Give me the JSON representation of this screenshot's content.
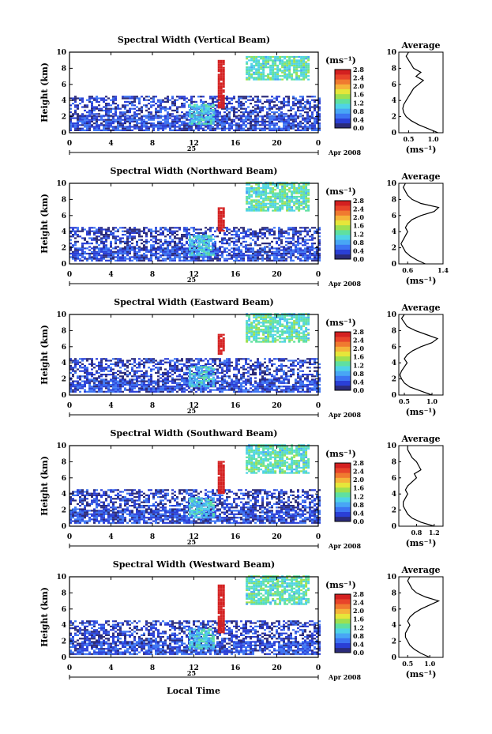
{
  "figure": {
    "xlabel": "Local Time",
    "date_label": "Apr 2008",
    "day_label": "25",
    "x_ticks": [
      "0",
      "4",
      "8",
      "12",
      "16",
      "20",
      "0"
    ],
    "y_ticks": [
      "0",
      "2",
      "4",
      "6",
      "8",
      "10"
    ],
    "ylabel": "Height (km)",
    "unit_label": "(ms⁻¹)",
    "colorbar_ticks": [
      "0.0",
      "0.4",
      "0.8",
      "1.2",
      "1.6",
      "2.0",
      "2.4",
      "2.8"
    ],
    "avg_title": "Average",
    "avg_unit": "(ms⁻¹)"
  },
  "colors": {
    "scale": [
      "#2b2b7a",
      "#2a3fd6",
      "#3c74f2",
      "#48a6f5",
      "#4fd3e6",
      "#5fe0a0",
      "#9ee050",
      "#e6e63a",
      "#f5b43a",
      "#f07a30",
      "#e8442a",
      "#d42020"
    ]
  },
  "chart_data": [
    {
      "type": "heatmap",
      "title": "Spectral Width (Vertical Beam)",
      "xlim": [
        0,
        24
      ],
      "ylim": [
        0,
        10
      ],
      "colorbar_range": [
        0.0,
        2.8
      ],
      "regions": [
        {
          "x": [
            0,
            24
          ],
          "y": [
            0.2,
            2.0
          ],
          "value": 0.4
        },
        {
          "x": [
            0,
            24
          ],
          "y": [
            2.0,
            4.5
          ],
          "value": 0.3
        },
        {
          "x": [
            17,
            23
          ],
          "y": [
            6.5,
            9.5
          ],
          "value": 1.2
        },
        {
          "x": [
            14.3,
            14.9
          ],
          "y": [
            3.0,
            9.0
          ],
          "value": 2.8
        },
        {
          "x": [
            11.5,
            14.0
          ],
          "y": [
            1.0,
            3.5
          ],
          "value": 1.0
        }
      ],
      "average_profile": {
        "xlim": [
          0.3,
          1.2
        ],
        "x_ticks": [
          "0.5",
          "1.0"
        ],
        "height": [
          0,
          0.5,
          1,
          1.5,
          2,
          2.5,
          3,
          3.5,
          4,
          4.5,
          5,
          5.5,
          6,
          6.5,
          7,
          7.5,
          8,
          8.5,
          9,
          9.5,
          10
        ],
        "width": [
          1.1,
          0.9,
          0.7,
          0.55,
          0.45,
          0.4,
          0.38,
          0.4,
          0.45,
          0.5,
          0.55,
          0.6,
          0.7,
          0.8,
          0.65,
          0.75,
          0.6,
          0.55,
          0.5,
          0.45,
          0.5
        ]
      }
    },
    {
      "type": "heatmap",
      "title": "Spectral Width (Northward Beam)",
      "xlim": [
        0,
        24
      ],
      "ylim": [
        0,
        10
      ],
      "colorbar_range": [
        0.0,
        2.8
      ],
      "regions": [
        {
          "x": [
            0,
            24
          ],
          "y": [
            0.3,
            2.0
          ],
          "value": 0.4
        },
        {
          "x": [
            0,
            24
          ],
          "y": [
            2.0,
            4.5
          ],
          "value": 0.3
        },
        {
          "x": [
            17,
            23
          ],
          "y": [
            6.5,
            10
          ],
          "value": 1.2
        },
        {
          "x": [
            14.3,
            14.9
          ],
          "y": [
            4.0,
            7.0
          ],
          "value": 2.8
        },
        {
          "x": [
            11.5,
            14.0
          ],
          "y": [
            1.0,
            3.5
          ],
          "value": 1.0
        }
      ],
      "average_profile": {
        "xlim": [
          0.4,
          1.4
        ],
        "x_ticks": [
          "0.6",
          "1.4"
        ],
        "height": [
          0,
          0.5,
          1,
          1.5,
          2,
          2.5,
          3,
          3.5,
          4,
          4.5,
          5,
          5.5,
          6,
          6.5,
          7,
          7.5,
          8,
          8.5,
          9,
          9.5,
          10
        ],
        "width": [
          1.0,
          0.8,
          0.65,
          0.55,
          0.5,
          0.45,
          0.5,
          0.55,
          0.6,
          0.55,
          0.6,
          0.7,
          0.9,
          1.2,
          1.3,
          0.9,
          0.7,
          0.6,
          0.55,
          0.5,
          0.55
        ]
      }
    },
    {
      "type": "heatmap",
      "title": "Spectral Width (Eastward Beam)",
      "xlim": [
        0,
        24
      ],
      "ylim": [
        0,
        10
      ],
      "colorbar_range": [
        0.0,
        2.8
      ],
      "regions": [
        {
          "x": [
            0,
            24
          ],
          "y": [
            0.3,
            2.0
          ],
          "value": 0.4
        },
        {
          "x": [
            0,
            24
          ],
          "y": [
            2.0,
            4.5
          ],
          "value": 0.3
        },
        {
          "x": [
            17,
            23
          ],
          "y": [
            6.5,
            10
          ],
          "value": 1.2
        },
        {
          "x": [
            14.3,
            14.9
          ],
          "y": [
            5.0,
            7.5
          ],
          "value": 2.8
        },
        {
          "x": [
            11.5,
            14.0
          ],
          "y": [
            1.0,
            3.5
          ],
          "value": 1.0
        }
      ],
      "average_profile": {
        "xlim": [
          0.4,
          1.2
        ],
        "x_ticks": [
          "0.5",
          "1.0"
        ],
        "height": [
          0,
          0.5,
          1,
          1.5,
          2,
          2.5,
          3,
          3.5,
          4,
          4.5,
          5,
          5.5,
          6,
          6.5,
          7,
          7.5,
          8,
          8.5,
          9,
          9.5,
          10
        ],
        "width": [
          1.0,
          0.8,
          0.6,
          0.5,
          0.45,
          0.42,
          0.45,
          0.5,
          0.55,
          0.5,
          0.55,
          0.65,
          0.8,
          1.0,
          1.1,
          0.9,
          0.7,
          0.55,
          0.5,
          0.45,
          0.5
        ]
      }
    },
    {
      "type": "heatmap",
      "title": "Spectral Width (Southward Beam)",
      "xlim": [
        0,
        24
      ],
      "ylim": [
        0,
        10
      ],
      "colorbar_range": [
        0.0,
        2.8
      ],
      "regions": [
        {
          "x": [
            0,
            24
          ],
          "y": [
            0.3,
            2.0
          ],
          "value": 0.4
        },
        {
          "x": [
            0,
            24
          ],
          "y": [
            2.0,
            4.5
          ],
          "value": 0.3
        },
        {
          "x": [
            17,
            23
          ],
          "y": [
            6.5,
            10
          ],
          "value": 1.2
        },
        {
          "x": [
            14.3,
            14.9
          ],
          "y": [
            4.0,
            8.0
          ],
          "value": 2.8
        },
        {
          "x": [
            11.5,
            14.0
          ],
          "y": [
            1.0,
            3.5
          ],
          "value": 1.0
        }
      ],
      "average_profile": {
        "xlim": [
          0.4,
          1.4
        ],
        "x_ticks": [
          "0.8",
          "1.2"
        ],
        "height": [
          0,
          0.5,
          1,
          1.5,
          2,
          2.5,
          3,
          3.5,
          4,
          4.5,
          5,
          5.5,
          6,
          6.5,
          7,
          7.5,
          8,
          8.5,
          9,
          9.5,
          10
        ],
        "width": [
          1.2,
          0.9,
          0.7,
          0.6,
          0.55,
          0.5,
          0.5,
          0.55,
          0.6,
          0.55,
          0.6,
          0.7,
          0.8,
          0.75,
          0.9,
          0.85,
          0.8,
          0.7,
          0.65,
          0.6,
          0.6
        ]
      }
    },
    {
      "type": "heatmap",
      "title": "Spectral Width (Westward Beam)",
      "xlim": [
        0,
        24
      ],
      "ylim": [
        0,
        10
      ],
      "colorbar_range": [
        0.0,
        2.8
      ],
      "regions": [
        {
          "x": [
            0,
            24
          ],
          "y": [
            0.3,
            2.0
          ],
          "value": 0.4
        },
        {
          "x": [
            0,
            24
          ],
          "y": [
            2.0,
            4.5
          ],
          "value": 0.3
        },
        {
          "x": [
            17,
            23
          ],
          "y": [
            6.5,
            10
          ],
          "value": 1.2
        },
        {
          "x": [
            14.3,
            14.9
          ],
          "y": [
            3.0,
            9.0
          ],
          "value": 2.8
        },
        {
          "x": [
            11.5,
            14.0
          ],
          "y": [
            1.0,
            3.5
          ],
          "value": 1.0
        }
      ],
      "average_profile": {
        "xlim": [
          0.3,
          1.3
        ],
        "x_ticks": [
          "0.5",
          "1.0"
        ],
        "height": [
          0,
          0.5,
          1,
          1.5,
          2,
          2.5,
          3,
          3.5,
          4,
          4.5,
          5,
          5.5,
          6,
          6.5,
          7,
          7.5,
          8,
          8.5,
          9,
          9.5,
          10
        ],
        "width": [
          1.0,
          0.8,
          0.65,
          0.55,
          0.5,
          0.45,
          0.45,
          0.5,
          0.55,
          0.5,
          0.55,
          0.65,
          0.8,
          1.0,
          1.2,
          0.9,
          0.7,
          0.6,
          0.55,
          0.5,
          0.55
        ]
      }
    }
  ]
}
